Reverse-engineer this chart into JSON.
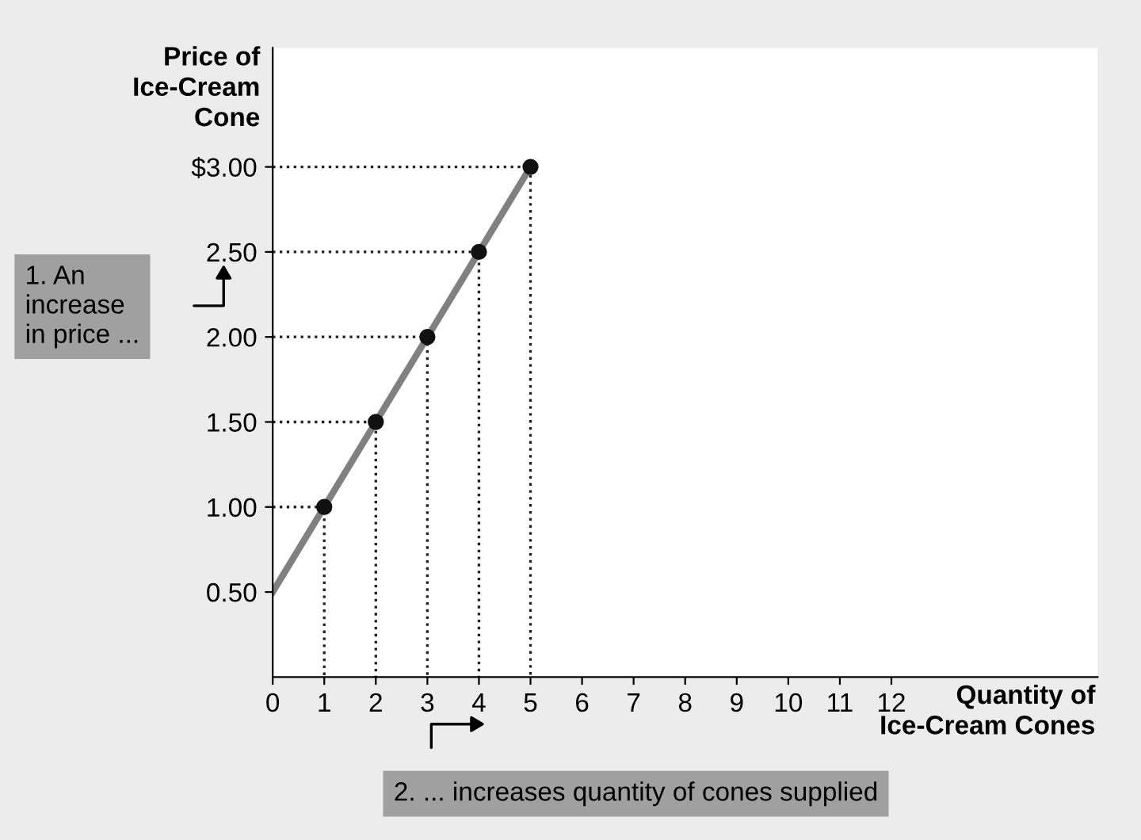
{
  "chart_data": {
    "type": "line",
    "xlabel": "Quantity of\nIce-Cream Cones",
    "ylabel": "Price of\nIce-Cream\nCone",
    "xlim": [
      0,
      16
    ],
    "ylim": [
      0,
      3.7
    ],
    "xticks": [
      0,
      1,
      2,
      3,
      4,
      5,
      6,
      7,
      8,
      9,
      10,
      11,
      12
    ],
    "yticks": [
      {
        "value": 0.5,
        "label": "0.50"
      },
      {
        "value": 1.0,
        "label": "1.00"
      },
      {
        "value": 1.5,
        "label": "1.50"
      },
      {
        "value": 2.0,
        "label": "2.00"
      },
      {
        "value": 2.5,
        "label": "2.50"
      },
      {
        "value": 3.0,
        "label": "$3.00"
      }
    ],
    "series": [
      {
        "color": "#808080",
        "x": [
          0,
          5
        ],
        "values": [
          0.5,
          3.0
        ],
        "line_style": "solid"
      },
      {
        "type": "line",
        "color": "#222222",
        "x": [
          0,
          1,
          1
        ],
        "values": [
          1.0,
          1.0,
          0
        ],
        "line_style": "dotted"
      },
      {
        "type": "line",
        "color": "#222222",
        "x": [
          0,
          2,
          2
        ],
        "values": [
          1.5,
          1.5,
          0
        ],
        "line_style": "dotted"
      },
      {
        "type": "line",
        "color": "#222222",
        "x": [
          0,
          3,
          3
        ],
        "values": [
          2.0,
          2.0,
          0
        ],
        "line_style": "dotted"
      },
      {
        "type": "line",
        "color": "#222222",
        "x": [
          0,
          4,
          4
        ],
        "values": [
          2.5,
          2.5,
          0
        ],
        "line_style": "dotted"
      },
      {
        "type": "line",
        "color": "#222222",
        "x": [
          0,
          5,
          5
        ],
        "values": [
          3.0,
          3.0,
          0
        ],
        "line_style": "dotted"
      },
      {
        "type": "scatter",
        "color": "#111111",
        "x": [
          1,
          2,
          3,
          4,
          5
        ],
        "values": [
          1.0,
          1.5,
          2.0,
          2.5,
          3.0
        ],
        "marker": "circle"
      }
    ],
    "annotations": [
      "1. An\nincrease\nin price ...",
      "2. ... increases quantity of cones supplied"
    ]
  }
}
